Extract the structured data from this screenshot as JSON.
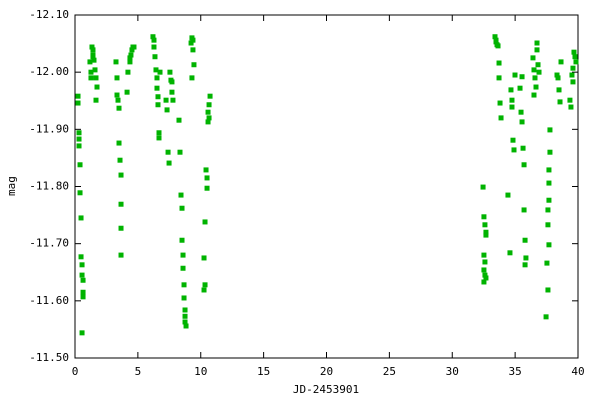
{
  "chart_data": {
    "type": "scatter",
    "xlabel": "JD-2453901",
    "ylabel": "mag",
    "color": "#00b300",
    "xlim": [
      0,
      40
    ],
    "xticks": [
      0,
      5,
      10,
      15,
      20,
      25,
      30,
      35,
      40
    ],
    "ylim": [
      -11.5,
      -12.1
    ],
    "yticks": [
      {
        "value": -11.5,
        "label": "-11.50"
      },
      {
        "value": -11.6,
        "label": "-11.60"
      },
      {
        "value": -11.7,
        "label": "-11.70"
      },
      {
        "value": -11.8,
        "label": "-11.80"
      },
      {
        "value": -11.9,
        "label": "-11.90"
      },
      {
        "value": -12.0,
        "label": "-12.00"
      },
      {
        "value": -12.1,
        "label": "-12.10"
      }
    ],
    "grid": false,
    "x": [
      0.24,
      0.24,
      0.32,
      0.32,
      0.32,
      0.4,
      0.4,
      0.48,
      0.48,
      0.56,
      0.56,
      0.64,
      0.64,
      0.64,
      0.56,
      1.19,
      1.27,
      1.27,
      1.35,
      1.43,
      1.43,
      1.51,
      1.59,
      1.67,
      1.75,
      1.67,
      1.43,
      3.26,
      3.34,
      3.34,
      3.42,
      3.5,
      3.5,
      3.58,
      3.66,
      3.66,
      3.66,
      3.66,
      4.14,
      4.21,
      4.37,
      4.45,
      4.53,
      4.61,
      4.69,
      4.37,
      6.2,
      6.28,
      6.28,
      6.36,
      6.44,
      6.52,
      6.52,
      6.6,
      6.6,
      6.68,
      6.68,
      6.76,
      7.24,
      7.32,
      7.4,
      7.48,
      7.55,
      7.63,
      7.71,
      7.71,
      7.79,
      8.27,
      8.35,
      8.43,
      8.51,
      8.51,
      8.59,
      8.59,
      8.67,
      8.67,
      8.75,
      8.75,
      8.75,
      8.83,
      9.23,
      9.3,
      9.38,
      9.38,
      9.46,
      9.3,
      10.26,
      10.26,
      10.34,
      10.34,
      10.42,
      10.5,
      10.5,
      10.58,
      10.58,
      10.66,
      10.66,
      10.74,
      32.45,
      32.52,
      32.6,
      32.68,
      32.68,
      32.52,
      32.6,
      32.52,
      32.6,
      32.68,
      32.52,
      33.4,
      33.48,
      33.56,
      33.64,
      33.72,
      33.72,
      33.8,
      33.88,
      33.48,
      34.43,
      34.59,
      34.67,
      34.75,
      34.75,
      34.83,
      34.91,
      34.99,
      35.39,
      35.47,
      35.55,
      35.63,
      35.71,
      35.71,
      35.79,
      35.79,
      35.86,
      35.55,
      36.42,
      36.5,
      36.58,
      36.66,
      36.74,
      36.74,
      36.82,
      36.5,
      36.9,
      37.53,
      37.61,
      37.46,
      37.69,
      37.69,
      37.69,
      37.69,
      37.77,
      37.77,
      37.61,
      37.61,
      38.33,
      38.41,
      38.57,
      38.65,
      38.49,
      39.36,
      39.44,
      39.52,
      39.6,
      39.68,
      39.76,
      39.84,
      39.6
    ],
    "y": [
      -11.958,
      -11.946,
      -11.894,
      -11.883,
      -11.871,
      -11.838,
      -11.789,
      -11.745,
      -11.677,
      -11.663,
      -11.645,
      -11.636,
      -11.615,
      -11.607,
      -11.544,
      -12.018,
      -12.0,
      -11.99,
      -12.044,
      -12.039,
      -12.03,
      -12.021,
      -12.004,
      -11.99,
      -11.974,
      -11.951,
      -12.027,
      -12.018,
      -11.99,
      -11.96,
      -11.951,
      -11.937,
      -11.876,
      -11.846,
      -11.82,
      -11.769,
      -11.727,
      -11.68,
      -11.965,
      -12.0,
      -12.018,
      -12.03,
      -12.039,
      -12.044,
      -12.044,
      -12.025,
      -12.062,
      -12.056,
      -12.044,
      -12.027,
      -12.004,
      -11.99,
      -11.972,
      -11.957,
      -11.943,
      -11.894,
      -11.885,
      -12.0,
      -11.951,
      -11.934,
      -11.86,
      -11.841,
      -12.0,
      -11.986,
      -11.983,
      -11.965,
      -11.951,
      -11.916,
      -11.86,
      -11.785,
      -11.762,
      -11.706,
      -11.68,
      -11.657,
      -11.628,
      -11.605,
      -11.584,
      -11.573,
      -11.563,
      -11.556,
      -12.051,
      -12.06,
      -12.056,
      -12.039,
      -12.013,
      -11.99,
      -11.675,
      -11.619,
      -11.628,
      -11.738,
      -11.829,
      -11.815,
      -11.797,
      -11.93,
      -11.913,
      -11.92,
      -11.943,
      -11.958,
      -11.799,
      -11.747,
      -11.733,
      -11.72,
      -11.715,
      -11.68,
      -11.668,
      -11.654,
      -11.645,
      -11.64,
      -11.633,
      -12.062,
      -12.053,
      -12.048,
      -12.046,
      -12.016,
      -11.99,
      -11.946,
      -11.92,
      -12.056,
      -11.785,
      -11.684,
      -11.969,
      -11.951,
      -11.939,
      -11.881,
      -11.864,
      -11.995,
      -11.972,
      -11.93,
      -11.913,
      -11.867,
      -11.838,
      -11.759,
      -11.706,
      -11.663,
      -11.675,
      -11.992,
      -12.025,
      -12.004,
      -11.99,
      -11.974,
      -12.051,
      -12.039,
      -12.013,
      -11.96,
      -12.0,
      -11.666,
      -11.619,
      -11.572,
      -11.698,
      -11.776,
      -11.806,
      -11.829,
      -11.86,
      -11.899,
      -11.759,
      -11.733,
      -11.995,
      -11.99,
      -11.948,
      -12.018,
      -11.969,
      -11.951,
      -11.939,
      -11.995,
      -12.007,
      -12.035,
      -12.027,
      -12.018,
      -11.983
    ]
  }
}
